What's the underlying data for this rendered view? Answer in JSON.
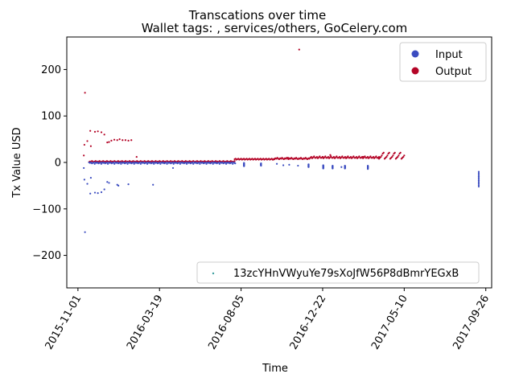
{
  "chart_data": {
    "type": "scatter",
    "title": "Transcations over time",
    "subtitle": "Wallet tags: , services/others, GoCelery.com",
    "xlabel": "Time",
    "ylabel": "Tx Value USD",
    "x_axis_type": "date",
    "xlim": [
      "2015-10-13",
      "2017-10-06"
    ],
    "ylim": [
      -270,
      270
    ],
    "x_ticks": [
      "2015-11-01",
      "2016-03-19",
      "2016-08-05",
      "2016-12-22",
      "2017-05-10",
      "2017-09-26"
    ],
    "y_ticks": [
      -200,
      -100,
      0,
      100,
      200
    ],
    "grid": false,
    "legends": [
      {
        "placement": "top-right",
        "entries": [
          {
            "label": "Input",
            "color": "#3b4cc0",
            "marker": "circle"
          },
          {
            "label": "Output",
            "color": "#b40426",
            "marker": "circle"
          }
        ]
      },
      {
        "placement": "lower-right",
        "entries": [
          {
            "label": "13zcYHnVWyuYe79sXoJfW56P8dBmrYEGxB",
            "color": "#3b9e9e",
            "marker": "dot"
          }
        ]
      }
    ],
    "series": [
      {
        "name": "Output",
        "color": "#b40426",
        "points": [
          [
            "2015-11-11",
            15
          ],
          [
            "2015-11-12",
            38
          ],
          [
            "2015-11-13",
            150
          ],
          [
            "2015-11-17",
            46
          ],
          [
            "2015-11-22",
            68
          ],
          [
            "2015-11-23",
            35
          ],
          [
            "2015-11-30",
            66
          ],
          [
            "2015-12-05",
            67
          ],
          [
            "2015-12-11",
            65
          ],
          [
            "2015-12-16",
            60
          ],
          [
            "2015-12-21",
            43
          ],
          [
            "2015-12-24",
            44
          ],
          [
            "2015-12-28",
            47
          ],
          [
            "2016-01-02",
            49
          ],
          [
            "2016-01-07",
            48
          ],
          [
            "2016-01-11",
            50
          ],
          [
            "2016-01-16",
            48
          ],
          [
            "2016-01-21",
            48
          ],
          [
            "2016-01-26",
            47
          ],
          [
            "2016-01-31",
            48
          ],
          [
            "2016-02-09",
            12
          ],
          [
            "2016-09-29",
            6
          ],
          [
            "2016-10-24",
            10
          ],
          [
            "2016-11-12",
            243
          ],
          [
            "2016-12-22",
            12
          ],
          [
            "2017-01-04",
            16
          ],
          [
            "2017-02-01",
            10
          ],
          [
            "2017-03-01",
            12
          ]
        ],
        "dense_segments": [
          {
            "from": "2015-11-20",
            "to": "2016-07-25",
            "values": [
              1,
              2,
              1,
              3,
              2,
              1,
              2,
              3
            ]
          },
          {
            "from": "2016-07-25",
            "to": "2016-10-01",
            "values": [
              7,
              8,
              6,
              7,
              8,
              6
            ]
          },
          {
            "from": "2016-10-01",
            "to": "2016-12-01",
            "values": [
              7,
              9,
              8,
              10,
              8
            ]
          },
          {
            "from": "2016-12-01",
            "to": "2017-03-28",
            "values": [
              10,
              12,
              9,
              11,
              13,
              10
            ]
          },
          {
            "from": "2017-03-28",
            "to": "2017-05-10",
            "values": [
              8,
              10,
              12,
              15,
              19,
              21
            ]
          }
        ]
      },
      {
        "name": "Input",
        "color": "#3b4cc0",
        "points": [
          [
            "2015-11-11",
            -12
          ],
          [
            "2015-11-12",
            -37
          ],
          [
            "2015-11-13",
            -150
          ],
          [
            "2015-11-17",
            -46
          ],
          [
            "2015-11-22",
            -67
          ],
          [
            "2015-11-23",
            -33
          ],
          [
            "2015-11-30",
            -65
          ],
          [
            "2015-12-05",
            -66
          ],
          [
            "2015-12-11",
            -64
          ],
          [
            "2015-12-16",
            -58
          ],
          [
            "2015-12-21",
            -42
          ],
          [
            "2015-12-24",
            -44
          ],
          [
            "2016-01-07",
            -48
          ],
          [
            "2016-01-09",
            -50
          ],
          [
            "2016-01-26",
            -47
          ],
          [
            "2016-03-08",
            -48
          ],
          [
            "2016-04-11",
            -12
          ],
          [
            "2016-07-26",
            -2
          ],
          [
            "2016-08-10",
            -5
          ],
          [
            "2016-09-08",
            -4
          ],
          [
            "2016-10-05",
            -3
          ],
          [
            "2016-10-16",
            -6
          ],
          [
            "2016-10-26",
            -5
          ],
          [
            "2016-11-10",
            -7
          ],
          [
            "2016-11-28",
            -8
          ],
          [
            "2016-12-23",
            -10
          ],
          [
            "2017-01-08",
            -9
          ],
          [
            "2017-01-23",
            -10
          ],
          [
            "2017-01-29",
            -9
          ],
          [
            "2017-03-09",
            -10
          ]
        ],
        "dense_segments": [
          {
            "from": "2015-11-20",
            "to": "2016-07-25",
            "values": [
              0,
              -1,
              0,
              -2,
              -1,
              0,
              -3
            ]
          }
        ],
        "vertical_clusters": [
          {
            "date": "2016-08-10",
            "from": -8,
            "to": -1
          },
          {
            "date": "2016-09-08",
            "from": -7,
            "to": -2
          },
          {
            "date": "2016-11-28",
            "from": -10,
            "to": -4
          },
          {
            "date": "2016-12-23",
            "from": -13,
            "to": -6
          },
          {
            "date": "2017-01-08",
            "from": -13,
            "to": -7
          },
          {
            "date": "2017-01-29",
            "from": -13,
            "to": -7
          },
          {
            "date": "2017-03-09",
            "from": -14,
            "to": -7
          },
          {
            "date": "2017-09-14",
            "from": -52,
            "to": -20
          }
        ]
      },
      {
        "name": "13zcYHnVWyuYe79sXoJfW56P8dBmrYEGxB",
        "color": "#3b9e9e",
        "points": []
      }
    ]
  }
}
